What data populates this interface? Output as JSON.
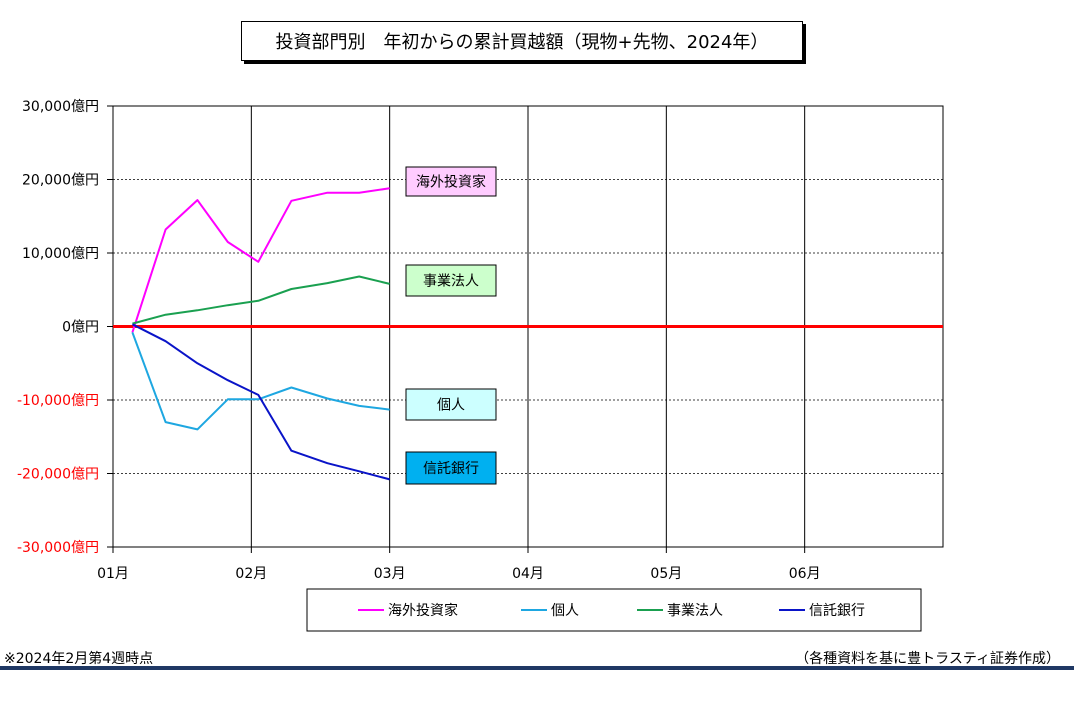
{
  "title": "投資部門別　年初からの累計買越額（現物+先物、2024年）",
  "chart_data": {
    "type": "line",
    "title": "投資部門別　年初からの累計買越額（現物+先物、2024年）",
    "ylim": [
      -30000,
      30000
    ],
    "y_ticks": [
      {
        "value": 30000,
        "label": "30,000億円"
      },
      {
        "value": 20000,
        "label": "20,000億円"
      },
      {
        "value": 10000,
        "label": "10,000億円"
      },
      {
        "value": 0,
        "label": "0億円"
      },
      {
        "value": -10000,
        "label": "-10,000億円"
      },
      {
        "value": -20000,
        "label": "-20,000億円"
      },
      {
        "value": -30000,
        "label": "-30,000億円"
      }
    ],
    "x_unit": "month",
    "xlim": [
      1,
      7
    ],
    "x_ticks": [
      {
        "value": 1,
        "label": "01月"
      },
      {
        "value": 2,
        "label": "02月"
      },
      {
        "value": 3,
        "label": "03月"
      },
      {
        "value": 4,
        "label": "04月"
      },
      {
        "value": 5,
        "label": "05月"
      },
      {
        "value": 6,
        "label": "06月"
      }
    ],
    "grid": true,
    "zero_line_color": "#ff0000",
    "negative_label_color": "#ff0000",
    "x": [
      1.14,
      1.38,
      1.61,
      1.83,
      2.05,
      2.29,
      2.55,
      2.78,
      3.0
    ],
    "series": [
      {
        "name": "海外投資家",
        "color": "#ff00ff",
        "label_bg": "#ffccff",
        "values": [
          -800,
          13200,
          17200,
          11500,
          8800,
          17100,
          18200,
          18200,
          18800
        ]
      },
      {
        "name": "個人",
        "color": "#1ea7e1",
        "label_bg": "#ccffff",
        "values": [
          -800,
          -13000,
          -14000,
          -9900,
          -9900,
          -8300,
          -9800,
          -10800,
          -11300
        ]
      },
      {
        "name": "事業法人",
        "color": "#1aa050",
        "label_bg": "#ccffcc",
        "values": [
          400,
          1600,
          2200,
          2900,
          3500,
          5100,
          5900,
          6800,
          5800
        ]
      },
      {
        "name": "信託銀行",
        "color": "#0a14c8",
        "label_bg": "#00b0f0",
        "values": [
          300,
          -2000,
          -5000,
          -7300,
          -9300,
          -16900,
          -18600,
          -19700,
          -20800
        ]
      }
    ],
    "legend_position": "bottom"
  },
  "notes": {
    "left": "※2024年2月第4週時点",
    "right": "（各種資料を基に豊トラスティ証券作成）"
  }
}
